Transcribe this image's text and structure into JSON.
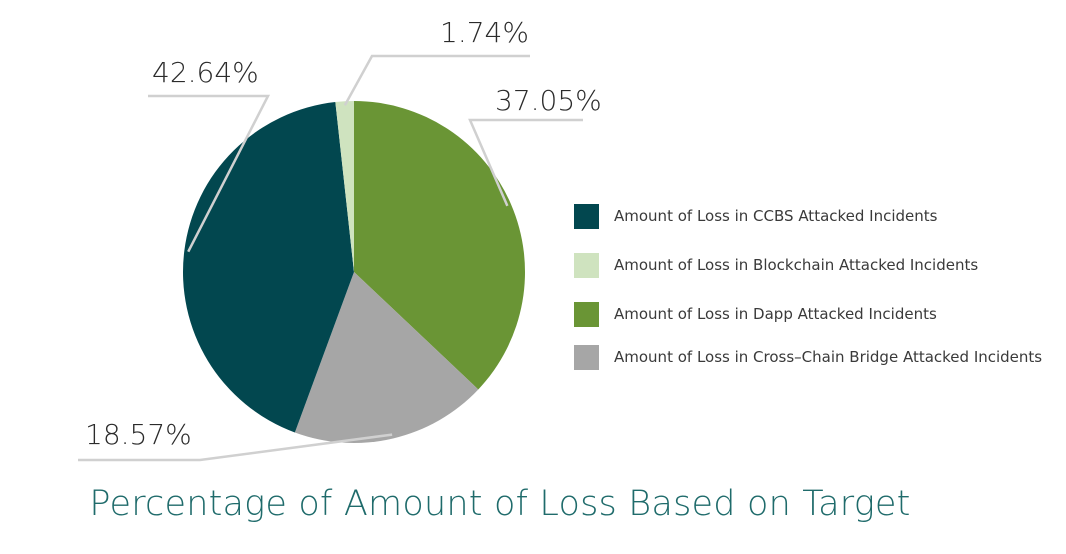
{
  "chart_data": {
    "type": "pie",
    "title": "Percentage of Amount of Loss Based on Target",
    "slices": [
      {
        "name": "Amount of Loss in Dapp Attacked Incidents",
        "value": 37.05,
        "label": "37.05%",
        "color": "#6a9535"
      },
      {
        "name": "Amount of Loss in Cross-Chain Bridge Attacked Incidents",
        "value": 18.57,
        "label": "18.57%",
        "color": "#a6a6a6"
      },
      {
        "name": "Amount of Loss in CCBS Attacked Incidents",
        "value": 42.64,
        "label": "42.64%",
        "color": "#02474f"
      },
      {
        "name": "Amount of Loss in Blockchain Attacked Incidents",
        "value": 1.74,
        "label": "1.74%",
        "color": "#cfe3bf"
      }
    ],
    "legend": [
      {
        "label": "Amount of Loss in CCBS Attacked Incidents",
        "color": "#02474f"
      },
      {
        "label": "Amount of Loss in Blockchain Attacked Incidents",
        "color": "#cfe3bf"
      },
      {
        "label": "Amount of Loss in Dapp Attacked Incidents",
        "color": "#6a9535"
      },
      {
        "label": "Amount of Loss in Cross–Chain Bridge Attacked Incidents",
        "color": "#a6a6a6"
      }
    ],
    "legend_position": "right"
  }
}
